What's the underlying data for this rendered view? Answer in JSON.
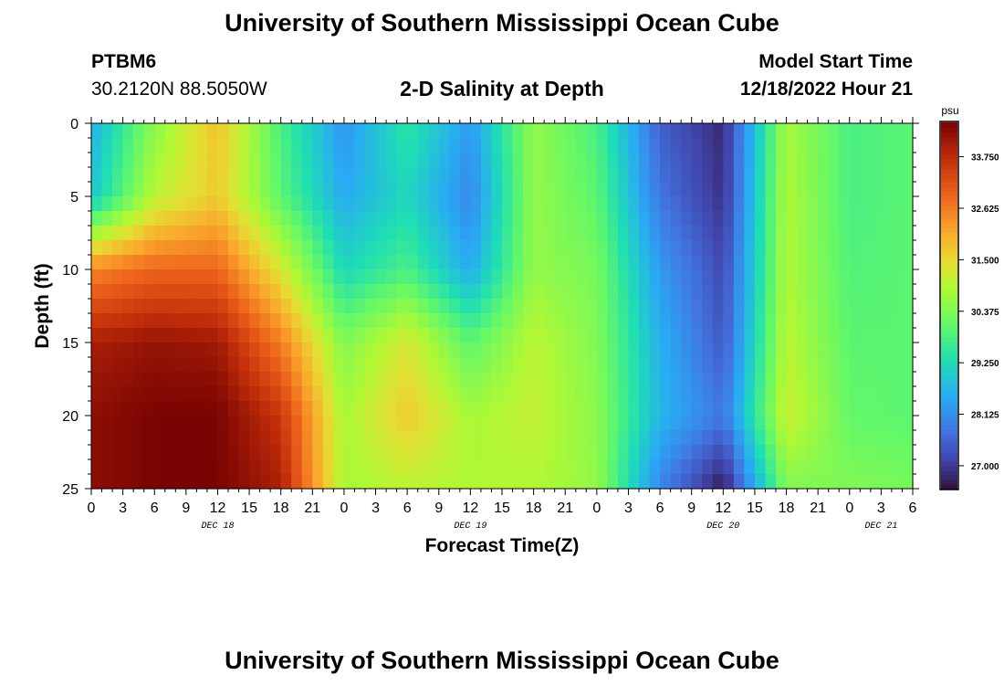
{
  "header": {
    "title": "University of Southern Mississippi Ocean Cube",
    "station_id": "PTBM6",
    "station_coords": "30.2120N  88.5050W",
    "plot_title": "2-D Salinity at Depth",
    "model_start_label": "Model Start Time",
    "model_start_value": "12/18/2022 Hour 21"
  },
  "footer": {
    "title": "University of Southern Mississippi Ocean Cube"
  },
  "chart_data": {
    "type": "heatmap",
    "title": "2-D Salinity at Depth",
    "xlabel": "Forecast Time(Z)",
    "ylabel": "Depth (ft)",
    "xlim": [
      0,
      78
    ],
    "ylim": [
      0,
      25
    ],
    "y_inverted": true,
    "xticks": [
      0,
      3,
      6,
      9,
      12,
      15,
      18,
      21,
      24,
      27,
      30,
      33,
      36,
      39,
      42,
      45,
      48,
      51,
      54,
      57,
      60,
      63,
      66,
      69,
      72,
      75,
      78
    ],
    "xtick_labels": [
      "0",
      "3",
      "6",
      "9",
      "12",
      "15",
      "18",
      "21",
      "0",
      "3",
      "6",
      "9",
      "12",
      "15",
      "18",
      "21",
      "0",
      "3",
      "6",
      "9",
      "12",
      "15",
      "18",
      "21",
      "0",
      "3",
      "6"
    ],
    "yticks": [
      0,
      5,
      10,
      15,
      20,
      25
    ],
    "ytick_labels": [
      "0",
      "5",
      "10",
      "15",
      "20",
      "25"
    ],
    "day_labels": [
      {
        "x": 12,
        "label": "DEC 18"
      },
      {
        "x": 36,
        "label": "DEC 19"
      },
      {
        "x": 60,
        "label": "DEC 20"
      },
      {
        "x": 75,
        "label": "DEC 21"
      }
    ],
    "colorbar": {
      "unit": "psu",
      "min": 26.5,
      "max": 34.5,
      "ticks": [
        27.0,
        28.125,
        29.25,
        30.375,
        31.5,
        32.625,
        33.75
      ],
      "tick_labels": [
        "27.000",
        "28.125",
        "29.250",
        "30.375",
        "31.500",
        "32.625",
        "33.750"
      ],
      "colormap": "turbo-like"
    },
    "x": [
      0,
      6,
      12,
      18,
      24,
      30,
      36,
      42,
      48,
      54,
      60,
      66,
      72,
      78
    ],
    "depth": [
      0,
      5,
      10,
      15,
      20,
      25
    ],
    "values": [
      [
        28.6,
        30.5,
        31.8,
        29.8,
        28.2,
        29.5,
        28.3,
        30.6,
        29.8,
        27.5,
        26.8,
        30.8,
        29.8,
        30.0
      ],
      [
        28.9,
        31.0,
        31.7,
        30.0,
        28.5,
        29.2,
        28.0,
        30.6,
        30.0,
        27.8,
        26.9,
        30.9,
        29.8,
        30.0
      ],
      [
        32.5,
        32.9,
        32.9,
        31.3,
        29.2,
        29.8,
        28.5,
        30.6,
        30.3,
        28.3,
        27.2,
        30.9,
        29.9,
        30.0
      ],
      [
        34.0,
        34.2,
        34.1,
        32.6,
        30.4,
        31.3,
        30.0,
        31.0,
        30.4,
        28.6,
        27.4,
        31.0,
        30.0,
        30.0
      ],
      [
        34.3,
        34.5,
        34.5,
        33.6,
        30.8,
        31.7,
        30.8,
        31.1,
        30.5,
        28.7,
        27.8,
        31.2,
        30.1,
        30.0
      ],
      [
        34.3,
        34.5,
        34.5,
        34.0,
        30.8,
        31.0,
        30.9,
        30.9,
        30.6,
        28.0,
        26.6,
        30.4,
        30.4,
        30.3
      ]
    ]
  }
}
